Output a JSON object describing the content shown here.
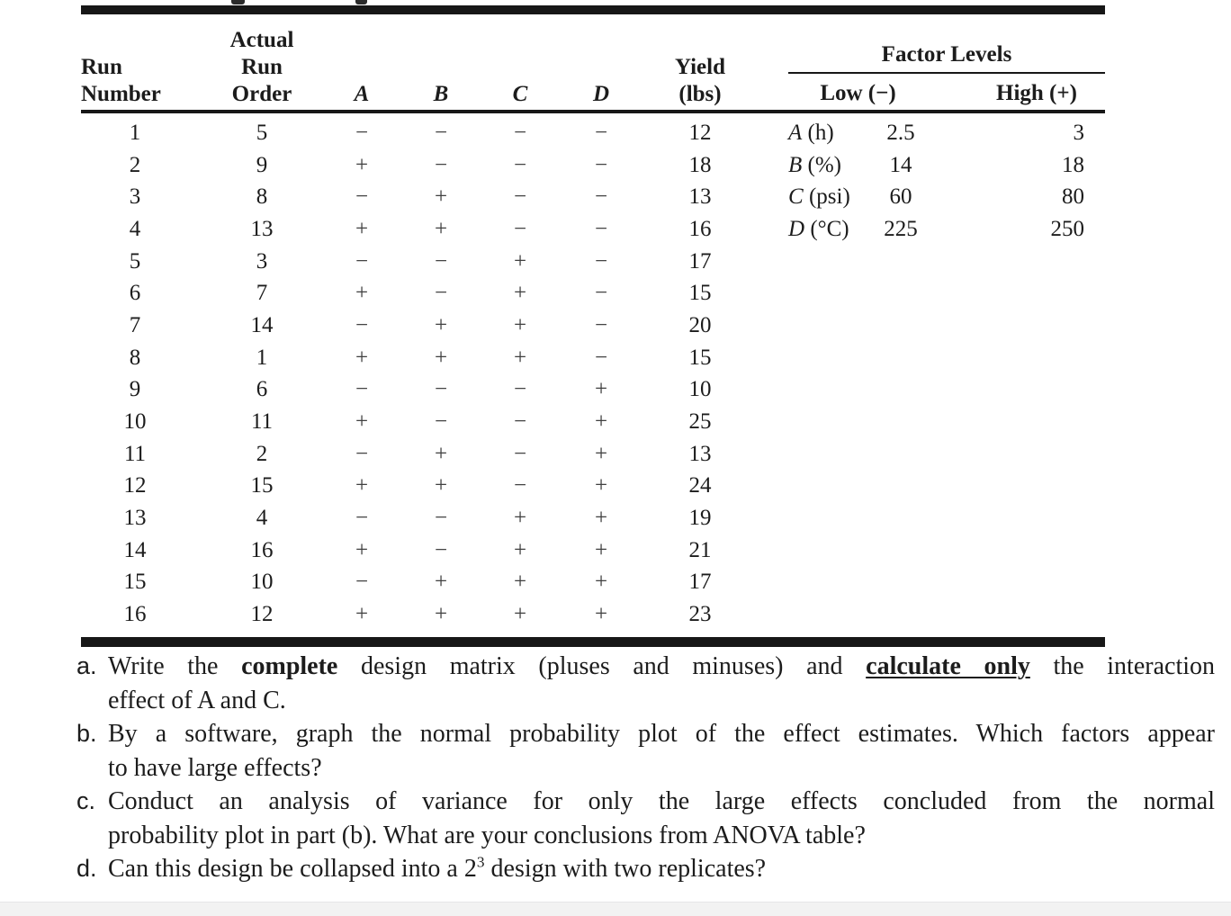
{
  "colors": {
    "text": "#1c1c1c",
    "rule": "#171717",
    "footer_strip": "#f2f2f2"
  },
  "design_table": {
    "header": {
      "run": [
        "Run",
        "Number"
      ],
      "order": [
        "Actual",
        "Run",
        "Order"
      ],
      "factors": [
        "A",
        "B",
        "C",
        "D"
      ],
      "yield": [
        "Yield",
        "(lbs)"
      ]
    },
    "rows": [
      [
        "1",
        "5",
        "−",
        "−",
        "−",
        "−",
        "12"
      ],
      [
        "2",
        "9",
        "+",
        "−",
        "−",
        "−",
        "18"
      ],
      [
        "3",
        "8",
        "−",
        "+",
        "−",
        "−",
        "13"
      ],
      [
        "4",
        "13",
        "+",
        "+",
        "−",
        "−",
        "16"
      ],
      [
        "5",
        "3",
        "−",
        "−",
        "+",
        "−",
        "17"
      ],
      [
        "6",
        "7",
        "+",
        "−",
        "+",
        "−",
        "15"
      ],
      [
        "7",
        "14",
        "−",
        "+",
        "+",
        "−",
        "20"
      ],
      [
        "8",
        "1",
        "+",
        "+",
        "+",
        "−",
        "15"
      ],
      [
        "9",
        "6",
        "−",
        "−",
        "−",
        "+",
        "10"
      ],
      [
        "10",
        "11",
        "+",
        "−",
        "−",
        "+",
        "25"
      ],
      [
        "11",
        "2",
        "−",
        "+",
        "−",
        "+",
        "13"
      ],
      [
        "12",
        "15",
        "+",
        "+",
        "−",
        "+",
        "24"
      ],
      [
        "13",
        "4",
        "−",
        "−",
        "+",
        "+",
        "19"
      ],
      [
        "14",
        "16",
        "+",
        "−",
        "+",
        "+",
        "21"
      ],
      [
        "15",
        "10",
        "−",
        "+",
        "+",
        "+",
        "17"
      ],
      [
        "16",
        "12",
        "+",
        "+",
        "+",
        "+",
        "23"
      ]
    ]
  },
  "factor_levels": {
    "title": "Factor Levels",
    "col_low": "Low (−)",
    "col_high": "High (+)",
    "rows": [
      {
        "letter": "A",
        "unit": "(h)",
        "low": "2.5",
        "high": "3"
      },
      {
        "letter": "B",
        "unit": "(%)",
        "low": "14",
        "high": "18"
      },
      {
        "letter": "C",
        "unit": "(psi)",
        "low": "60",
        "high": "80"
      },
      {
        "letter": "D",
        "unit": "(°C)",
        "low": "225",
        "high": "250"
      }
    ]
  },
  "questions": [
    {
      "marker": "a.",
      "lines": [
        {
          "justify": true,
          "segments": [
            {
              "t": "Write the "
            },
            {
              "t": "complete",
              "b": true
            },
            {
              "t": " design matrix (pluses and minuses) and "
            },
            {
              "t": "calculate only",
              "b": true,
              "u": true
            },
            {
              "t": " the interaction"
            }
          ]
        },
        {
          "segments": [
            {
              "t": "effect of A and C."
            }
          ]
        }
      ]
    },
    {
      "marker": "b.",
      "lines": [
        {
          "justify": true,
          "segments": [
            {
              "t": "By a software, graph the normal probability plot of the effect estimates. Which factors appear"
            }
          ]
        },
        {
          "segments": [
            {
              "t": "to have large effects?"
            }
          ]
        }
      ]
    },
    {
      "marker": "c.",
      "lines": [
        {
          "justify": true,
          "segments": [
            {
              "t": "Conduct an analysis of variance for only the large effects concluded from the normal"
            }
          ]
        },
        {
          "segments": [
            {
              "t": "probability plot in part (b). What are your conclusions from ANOVA table?"
            }
          ]
        }
      ]
    },
    {
      "marker": "d.",
      "lines": [
        {
          "segments": [
            {
              "t": "Can this design be collapsed into a 2"
            },
            {
              "t": "3",
              "sup": true
            },
            {
              "t": " design with two replicates?"
            }
          ]
        }
      ]
    }
  ]
}
